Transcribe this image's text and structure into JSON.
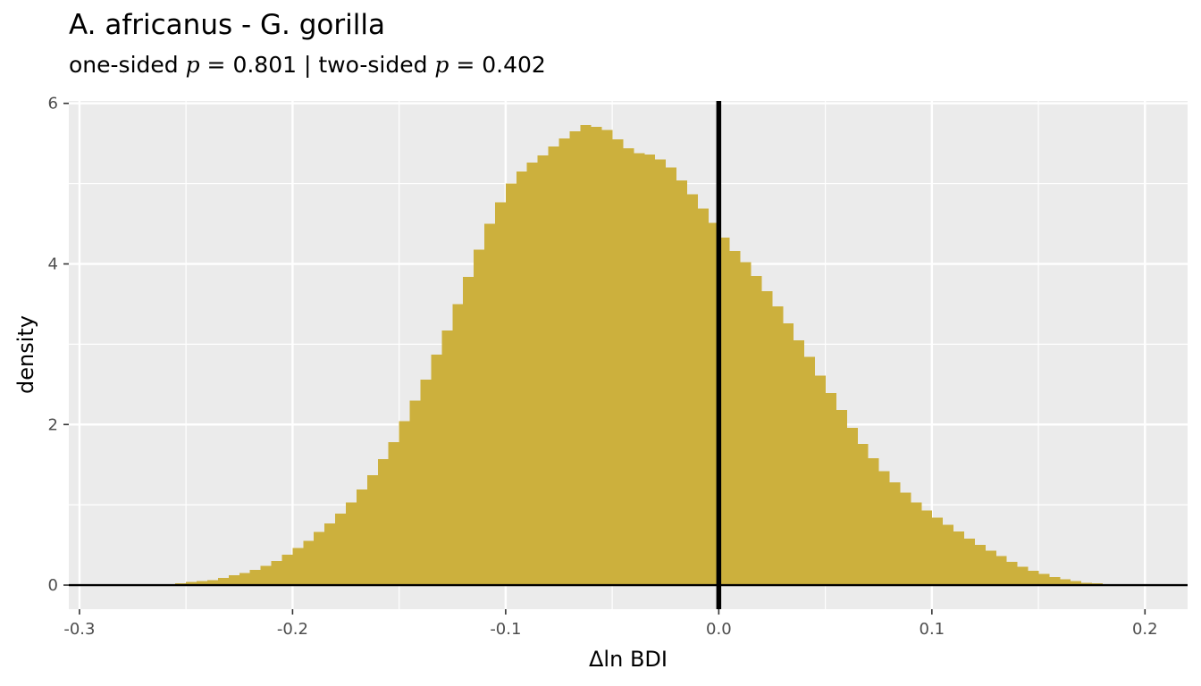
{
  "chart_data": {
    "type": "histogram",
    "title": "A. africanus - G. gorilla",
    "subtitle": {
      "one_sided_prefix": "one-sided ",
      "p_symbol": "p",
      "one_sided_value": " = 0.801 | two-sided ",
      "two_sided_value": " = 0.402"
    },
    "xlabel": "Δln BDI",
    "ylabel": "density",
    "xlim": [
      -0.305,
      0.22
    ],
    "ylim": [
      -0.3,
      6.03
    ],
    "x_ticks": [
      -0.3,
      -0.2,
      -0.1,
      0.0,
      0.1,
      0.2
    ],
    "x_tick_labels": [
      "-0.3",
      "-0.2",
      "-0.1",
      "0.0",
      "0.1",
      "0.2"
    ],
    "y_ticks": [
      0,
      2,
      4,
      6
    ],
    "y_tick_labels": [
      "0",
      "2",
      "4",
      "6"
    ],
    "bin_width": 0.005,
    "bins_start": -0.255,
    "density": [
      0.02,
      0.04,
      0.05,
      0.06,
      0.09,
      0.12,
      0.15,
      0.19,
      0.24,
      0.3,
      0.38,
      0.46,
      0.55,
      0.66,
      0.77,
      0.89,
      1.03,
      1.19,
      1.37,
      1.57,
      1.78,
      2.04,
      2.3,
      2.56,
      2.87,
      3.17,
      3.5,
      3.84,
      4.18,
      4.5,
      4.77,
      5.0,
      5.15,
      5.26,
      5.35,
      5.46,
      5.56,
      5.65,
      5.73,
      5.71,
      5.67,
      5.55,
      5.44,
      5.38,
      5.36,
      5.3,
      5.2,
      5.04,
      4.87,
      4.69,
      4.51,
      4.33,
      4.16,
      4.02,
      3.85,
      3.66,
      3.47,
      3.26,
      3.05,
      2.84,
      2.61,
      2.39,
      2.18,
      1.96,
      1.76,
      1.58,
      1.42,
      1.28,
      1.15,
      1.03,
      0.93,
      0.84,
      0.75,
      0.67,
      0.58,
      0.5,
      0.43,
      0.36,
      0.29,
      0.23,
      0.18,
      0.14,
      0.1,
      0.07,
      0.05,
      0.03,
      0.02,
      0.01
    ],
    "vline_x": 0.0,
    "hline_y": 0,
    "bar_color": "#CCB03D",
    "line_color": "#000000",
    "panel_background": "#EBEBEB",
    "grid_color": "#FFFFFF",
    "grid": true,
    "legend": "none"
  }
}
